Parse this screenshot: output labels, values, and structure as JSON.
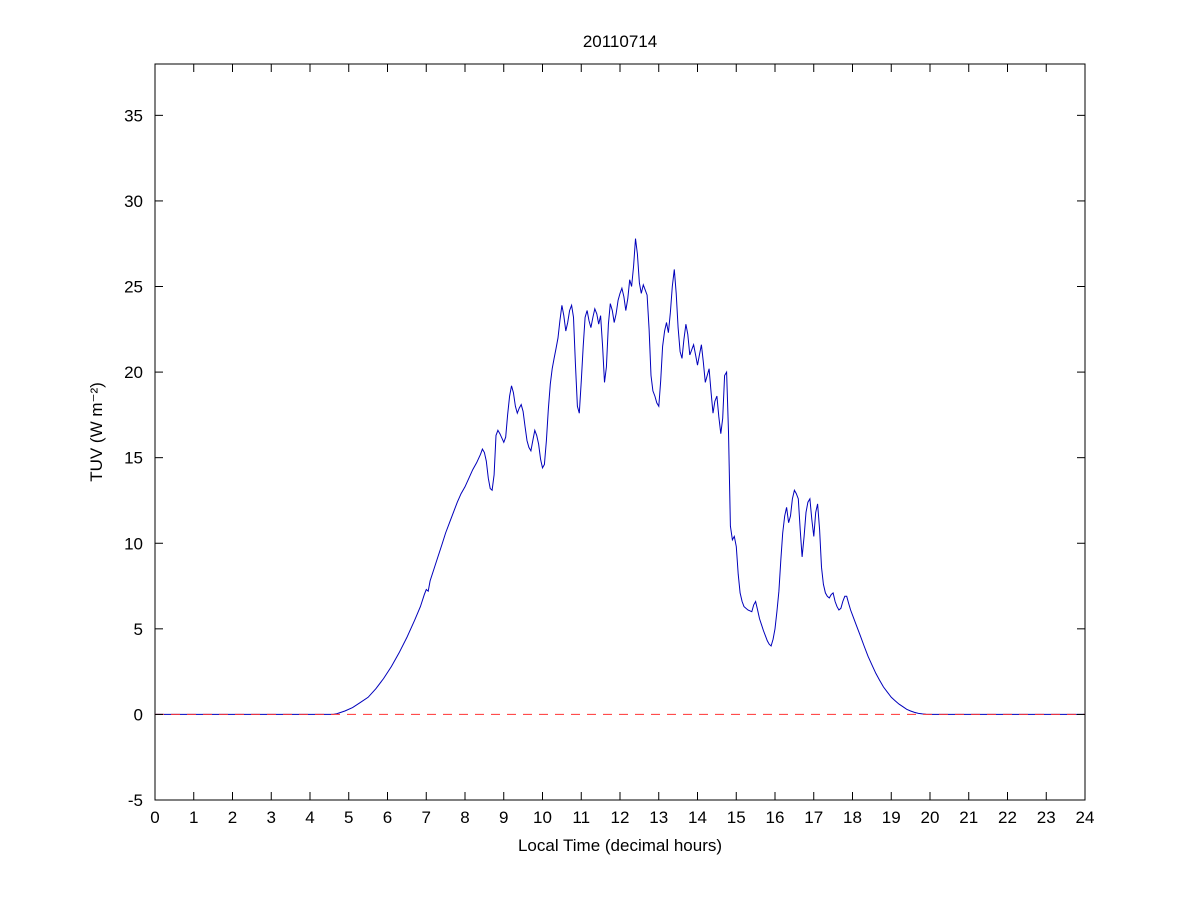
{
  "chart_data": {
    "type": "line",
    "title": "20110714",
    "xlabel": "Local Time (decimal hours)",
    "ylabel": "TUV (W m⁻²)",
    "xlim": [
      0,
      24
    ],
    "ylim": [
      -5,
      38
    ],
    "xticks": [
      0,
      1,
      2,
      3,
      4,
      5,
      6,
      7,
      8,
      9,
      10,
      11,
      12,
      13,
      14,
      15,
      16,
      17,
      18,
      19,
      20,
      21,
      22,
      23,
      24
    ],
    "yticks": [
      -5,
      0,
      5,
      10,
      15,
      20,
      25,
      30,
      35
    ],
    "grid": false,
    "legend": "none",
    "background": "#ffffff",
    "series": [
      {
        "name": "TUV irradiance",
        "color": "#0000bb",
        "style": "solid",
        "x": [
          0,
          1,
          2,
          3,
          4,
          4.4,
          4.6,
          4.7,
          4.9,
          5.1,
          5.3,
          5.5,
          5.7,
          5.9,
          6.1,
          6.3,
          6.5,
          6.7,
          6.85,
          6.95,
          7.0,
          7.05,
          7.1,
          7.2,
          7.3,
          7.4,
          7.5,
          7.6,
          7.7,
          7.8,
          7.9,
          8.0,
          8.1,
          8.2,
          8.3,
          8.4,
          8.45,
          8.5,
          8.55,
          8.6,
          8.65,
          8.7,
          8.75,
          8.8,
          8.85,
          8.9,
          9.0,
          9.05,
          9.1,
          9.15,
          9.2,
          9.25,
          9.3,
          9.35,
          9.4,
          9.45,
          9.5,
          9.55,
          9.6,
          9.65,
          9.7,
          9.75,
          9.8,
          9.85,
          9.9,
          9.95,
          10.0,
          10.05,
          10.1,
          10.15,
          10.2,
          10.25,
          10.3,
          10.35,
          10.4,
          10.45,
          10.5,
          10.55,
          10.6,
          10.65,
          10.7,
          10.75,
          10.8,
          10.85,
          10.9,
          10.95,
          11.0,
          11.05,
          11.1,
          11.15,
          11.2,
          11.25,
          11.3,
          11.35,
          11.4,
          11.45,
          11.5,
          11.55,
          11.6,
          11.65,
          11.7,
          11.75,
          11.8,
          11.85,
          11.9,
          11.95,
          12.0,
          12.05,
          12.1,
          12.15,
          12.2,
          12.25,
          12.3,
          12.35,
          12.4,
          12.45,
          12.5,
          12.55,
          12.6,
          12.65,
          12.7,
          12.75,
          12.8,
          12.85,
          12.9,
          12.95,
          13.0,
          13.05,
          13.1,
          13.15,
          13.2,
          13.25,
          13.3,
          13.35,
          13.4,
          13.45,
          13.5,
          13.55,
          13.6,
          13.65,
          13.7,
          13.75,
          13.8,
          13.85,
          13.9,
          13.95,
          14.0,
          14.05,
          14.1,
          14.15,
          14.2,
          14.25,
          14.3,
          14.35,
          14.4,
          14.45,
          14.5,
          14.55,
          14.6,
          14.65,
          14.7,
          14.75,
          14.8,
          14.85,
          14.9,
          14.95,
          15.0,
          15.05,
          15.1,
          15.15,
          15.2,
          15.3,
          15.4,
          15.45,
          15.5,
          15.55,
          15.6,
          15.7,
          15.8,
          15.85,
          15.9,
          15.95,
          16.0,
          16.05,
          16.1,
          16.15,
          16.2,
          16.25,
          16.3,
          16.35,
          16.4,
          16.45,
          16.5,
          16.55,
          16.6,
          16.65,
          16.7,
          16.75,
          16.8,
          16.85,
          16.9,
          16.95,
          17.0,
          17.05,
          17.1,
          17.15,
          17.2,
          17.25,
          17.3,
          17.35,
          17.4,
          17.45,
          17.5,
          17.55,
          17.6,
          17.65,
          17.7,
          17.75,
          17.8,
          17.85,
          17.9,
          17.95,
          18.0,
          18.1,
          18.2,
          18.3,
          18.4,
          18.5,
          18.6,
          18.7,
          18.8,
          18.9,
          19.0,
          19.1,
          19.2,
          19.3,
          19.4,
          19.5,
          19.6,
          19.7,
          19.8,
          19.9,
          20.0,
          20.5,
          21,
          22,
          23,
          24
        ],
        "y": [
          0,
          0,
          0,
          0,
          0,
          0,
          0,
          0.05,
          0.2,
          0.4,
          0.7,
          1.0,
          1.5,
          2.1,
          2.8,
          3.6,
          4.5,
          5.5,
          6.3,
          7.0,
          7.3,
          7.2,
          7.8,
          8.5,
          9.2,
          9.9,
          10.6,
          11.2,
          11.8,
          12.4,
          12.9,
          13.3,
          13.8,
          14.3,
          14.7,
          15.2,
          15.5,
          15.3,
          14.8,
          13.8,
          13.2,
          13.1,
          14.0,
          16.3,
          16.6,
          16.4,
          15.9,
          16.2,
          17.5,
          18.6,
          19.2,
          18.8,
          18.0,
          17.6,
          17.9,
          18.1,
          17.7,
          16.8,
          16.0,
          15.6,
          15.4,
          16.0,
          16.6,
          16.3,
          15.8,
          14.9,
          14.4,
          14.6,
          16.0,
          17.8,
          19.3,
          20.2,
          20.8,
          21.4,
          22.0,
          23.0,
          23.9,
          23.3,
          22.4,
          22.9,
          23.6,
          23.9,
          23.2,
          20.5,
          18.0,
          17.6,
          19.5,
          21.5,
          23.2,
          23.6,
          23.0,
          22.6,
          23.2,
          23.7,
          23.4,
          22.8,
          23.3,
          21.5,
          19.4,
          20.3,
          22.8,
          24.0,
          23.6,
          22.9,
          23.4,
          24.2,
          24.6,
          24.9,
          24.4,
          23.6,
          24.3,
          25.4,
          25.0,
          26.2,
          27.8,
          26.9,
          25.2,
          24.6,
          25.1,
          24.8,
          24.5,
          22.5,
          19.8,
          18.9,
          18.6,
          18.2,
          18.0,
          19.5,
          21.5,
          22.4,
          22.9,
          22.3,
          23.5,
          25.0,
          26.0,
          24.6,
          22.6,
          21.2,
          20.8,
          21.9,
          22.8,
          22.2,
          21.0,
          21.3,
          21.6,
          21.0,
          20.4,
          21.0,
          21.6,
          20.6,
          19.4,
          19.8,
          20.2,
          18.8,
          17.6,
          18.3,
          18.6,
          17.4,
          16.4,
          17.3,
          19.8,
          20.0,
          16.5,
          11.0,
          10.2,
          10.4,
          9.8,
          8.2,
          7.1,
          6.6,
          6.3,
          6.1,
          6.0,
          6.4,
          6.6,
          6.1,
          5.6,
          4.9,
          4.3,
          4.1,
          4.0,
          4.4,
          5.0,
          6.0,
          7.2,
          9.0,
          10.6,
          11.6,
          12.1,
          11.2,
          11.6,
          12.6,
          13.1,
          12.9,
          12.6,
          10.8,
          9.2,
          10.4,
          11.8,
          12.4,
          12.6,
          11.4,
          10.4,
          11.8,
          12.3,
          10.8,
          8.6,
          7.6,
          7.1,
          6.9,
          6.8,
          7.0,
          7.1,
          6.6,
          6.3,
          6.1,
          6.2,
          6.6,
          6.9,
          6.9,
          6.5,
          6.1,
          5.8,
          5.2,
          4.6,
          4.0,
          3.4,
          2.9,
          2.4,
          2.0,
          1.6,
          1.3,
          1.0,
          0.8,
          0.6,
          0.45,
          0.3,
          0.2,
          0.12,
          0.06,
          0.03,
          0.01,
          0,
          0,
          0,
          0,
          0,
          0
        ]
      },
      {
        "name": "zero reference line",
        "color": "#ff3333",
        "style": "dashed",
        "x": [
          0,
          24
        ],
        "y": [
          0,
          0
        ]
      }
    ]
  }
}
